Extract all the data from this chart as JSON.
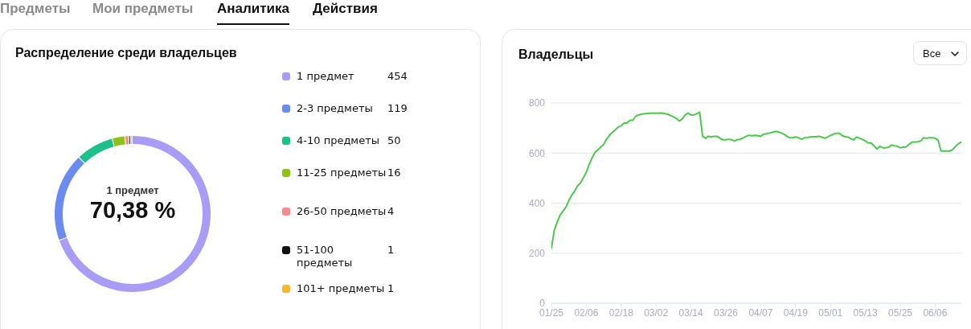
{
  "chart_data": [
    {
      "type": "donut",
      "title": "Распределение среди владельцев",
      "categories": [
        "1 предмет",
        "2-3 предметы",
        "4-10 предметы",
        "11-25 предметы",
        "26-50 предметы",
        "51-100 предметы",
        "101+ предметы"
      ],
      "values": [
        454,
        119,
        50,
        16,
        4,
        1,
        1
      ],
      "colors": [
        "#a99cf7",
        "#6a8cf0",
        "#1dbf8a",
        "#8cc21a",
        "#f78a8a",
        "#111111",
        "#f7b731"
      ],
      "legend": "right",
      "value_labels": [
        "454",
        "119",
        "50",
        "16",
        "4",
        "1",
        "1"
      ],
      "annotations": [
        "Предметы",
        "Мои предметы",
        "Аналитика",
        "Действия",
        "1 предмет",
        "70,38 %"
      ]
    },
    {
      "type": "line",
      "title": "Владельцы",
      "annotations": [
        "Все"
      ],
      "grid": "y",
      "marker": "none",
      "line_style": "solid",
      "xlim": [
        "--01-25",
        "--06-15"
      ],
      "ylim": [
        0,
        800
      ],
      "yticks": [
        0,
        200,
        400,
        600,
        800
      ],
      "xticks": [
        {
          "value": "--01-25",
          "label": "01/25"
        },
        {
          "value": "--02-06",
          "label": "02/06"
        },
        {
          "value": "--02-18",
          "label": "02/18"
        },
        {
          "value": "--03-02",
          "label": "03/02"
        },
        {
          "value": "--03-14",
          "label": "03/14"
        },
        {
          "value": "--03-26",
          "label": "03/26"
        },
        {
          "value": "--04-07",
          "label": "04/07"
        },
        {
          "value": "--04-19",
          "label": "04/19"
        },
        {
          "value": "--05-01",
          "label": "05/01"
        },
        {
          "value": "--05-13",
          "label": "05/13"
        },
        {
          "value": "--05-25",
          "label": "05/25"
        },
        {
          "value": "--06-06",
          "label": "06/06"
        }
      ],
      "x": [
        "--01-25",
        "--01-26",
        "--01-27",
        "--01-28",
        "--01-29",
        "--01-30",
        "--01-31",
        "--02-01",
        "--02-02",
        "--02-03",
        "--02-04",
        "--02-05",
        "--02-06",
        "--02-07",
        "--02-08",
        "--02-09",
        "--02-10",
        "--02-11",
        "--02-12",
        "--02-13",
        "--02-14",
        "--02-15",
        "--02-16",
        "--02-17",
        "--02-18",
        "--02-19",
        "--02-20",
        "--02-21",
        "--02-22",
        "--02-23",
        "--02-24",
        "--02-25",
        "--02-26",
        "--02-28",
        "--03-02",
        "--03-04",
        "--03-06",
        "--03-08",
        "--03-09",
        "--03-10",
        "--03-11",
        "--03-12",
        "--03-13",
        "--03-14",
        "--03-15",
        "--03-16",
        "--03-17",
        "--03-18",
        "--03-19",
        "--03-20",
        "--03-21",
        "--03-22",
        "--03-23",
        "--03-24",
        "--03-25",
        "--03-26",
        "--03-27",
        "--03-28",
        "--03-29",
        "--03-30",
        "--03-31",
        "--04-01",
        "--04-02",
        "--04-03",
        "--04-04",
        "--04-05",
        "--04-06",
        "--04-07",
        "--04-08",
        "--04-09",
        "--04-10",
        "--04-11",
        "--04-12",
        "--04-13",
        "--04-14",
        "--04-15",
        "--04-16",
        "--04-17",
        "--04-18",
        "--04-19",
        "--04-20",
        "--04-21",
        "--04-22",
        "--04-23",
        "--04-24",
        "--04-25",
        "--04-26",
        "--04-27",
        "--04-28",
        "--04-29",
        "--04-30",
        "--05-01",
        "--05-02",
        "--05-03",
        "--05-04",
        "--05-05",
        "--05-06",
        "--05-07",
        "--05-08",
        "--05-09",
        "--05-10",
        "--05-11",
        "--05-12",
        "--05-13",
        "--05-14",
        "--05-15",
        "--05-16",
        "--05-17",
        "--05-18",
        "--05-19",
        "--05-20",
        "--05-21",
        "--05-22",
        "--05-23",
        "--05-24",
        "--05-25",
        "--05-26",
        "--05-27",
        "--05-28",
        "--05-29",
        "--05-30",
        "--05-31",
        "--06-01",
        "--06-02",
        "--06-03",
        "--06-04",
        "--06-05",
        "--06-06",
        "--06-07",
        "--06-08",
        "--06-09",
        "--06-10",
        "--06-11",
        "--06-12",
        "--06-13",
        "--06-14",
        "--06-15"
      ],
      "series": [
        {
          "color": "#4cc94c",
          "values": [
            219,
            293,
            325,
            352,
            368,
            384,
            411,
            432,
            448,
            469,
            480,
            501,
            523,
            555,
            581,
            603,
            613,
            624,
            635,
            656,
            672,
            683,
            693,
            704,
            709,
            720,
            720,
            731,
            731,
            747,
            752,
            755,
            757,
            759,
            759,
            760,
            755,
            744,
            738,
            728,
            736,
            752,
            760,
            752,
            752,
            757,
            763,
            667,
            659,
            667,
            664,
            667,
            667,
            659,
            653,
            653,
            655,
            653,
            648,
            654,
            655,
            661,
            667,
            671,
            669,
            671,
            669,
            667,
            675,
            677,
            680,
            683,
            686,
            685,
            680,
            675,
            667,
            661,
            661,
            664,
            661,
            655,
            661,
            662,
            664,
            665,
            665,
            667,
            664,
            659,
            664,
            670,
            675,
            679,
            679,
            670,
            665,
            664,
            657,
            653,
            664,
            659,
            654,
            648,
            640,
            640,
            629,
            616,
            627,
            621,
            621,
            623,
            632,
            629,
            627,
            621,
            623,
            624,
            635,
            643,
            644,
            645,
            648,
            661,
            659,
            661,
            661,
            659,
            651,
            608,
            608,
            608,
            608,
            613,
            627,
            637,
            645
          ]
        }
      ]
    }
  ]
}
